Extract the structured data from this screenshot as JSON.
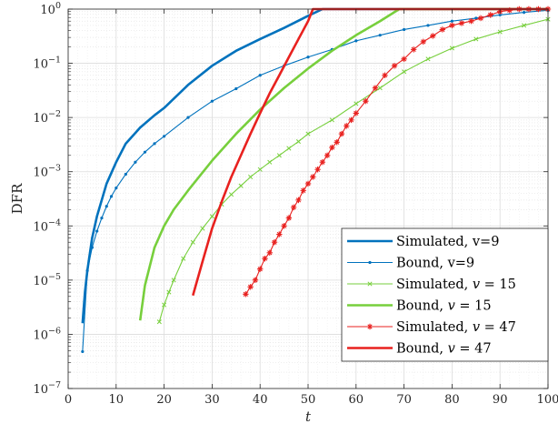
{
  "chart_data": {
    "type": "line",
    "title": "",
    "xlabel": "t",
    "ylabel": "DFR",
    "xlim": [
      0,
      100
    ],
    "ylim": [
      1e-07,
      1
    ],
    "yscale": "log",
    "x_ticks": [
      "0",
      "10",
      "20",
      "30",
      "40",
      "50",
      "60",
      "70",
      "80",
      "90",
      "100"
    ],
    "y_tick_exponents": [
      -7,
      -6,
      -5,
      -4,
      -3,
      -2,
      -1,
      0
    ],
    "grid": true,
    "minor_grid": true,
    "legend_position": "bottom-right",
    "series": [
      {
        "name": "Simulated, v=9",
        "color": "#0072BD",
        "style": "thick-line",
        "marker": "none",
        "x": [
          3,
          3.5,
          4,
          5,
          6,
          8,
          10,
          12,
          15,
          18,
          20,
          25,
          30,
          35,
          40,
          45,
          50,
          53,
          60,
          70,
          80,
          90,
          100
        ],
        "y": [
          1.6e-06,
          6e-06,
          1.5e-05,
          6e-05,
          0.00015,
          0.0006,
          0.0015,
          0.0033,
          0.0065,
          0.011,
          0.015,
          0.04,
          0.09,
          0.17,
          0.28,
          0.45,
          0.75,
          1,
          1,
          1,
          1,
          1,
          1
        ]
      },
      {
        "name": "Bound, v=9",
        "color": "#0072BD",
        "style": "thin-line",
        "marker": "dot",
        "x": [
          3,
          4,
          5,
          6,
          7,
          8,
          9,
          10,
          12,
          14,
          16,
          18,
          20,
          25,
          30,
          35,
          40,
          45,
          50,
          55,
          60,
          65,
          70,
          75,
          80,
          85,
          90,
          95,
          100
        ],
        "y": [
          4.8e-07,
          1.5e-05,
          4e-05,
          8e-05,
          0.00014,
          0.00023,
          0.00035,
          0.0005,
          0.0009,
          0.0015,
          0.0023,
          0.0033,
          0.0045,
          0.01,
          0.02,
          0.034,
          0.06,
          0.09,
          0.13,
          0.18,
          0.26,
          0.33,
          0.42,
          0.5,
          0.6,
          0.68,
          0.78,
          0.87,
          0.95
        ]
      },
      {
        "name": "Simulated, $v$ = 15",
        "color": "#77CF3C",
        "style": "thin-line",
        "marker": "x",
        "x": [
          19,
          20,
          21,
          22,
          24,
          26,
          28,
          30,
          32,
          34,
          36,
          38,
          40,
          42,
          44,
          46,
          48,
          50,
          55,
          60,
          65,
          70,
          75,
          80,
          85,
          90,
          95,
          100
        ],
        "y": [
          1.7e-06,
          3.5e-06,
          6e-06,
          1e-05,
          2.5e-05,
          5e-05,
          9e-05,
          0.00015,
          0.00025,
          0.00038,
          0.00055,
          0.0008,
          0.0011,
          0.0015,
          0.002,
          0.0027,
          0.0036,
          0.005,
          0.009,
          0.018,
          0.035,
          0.07,
          0.12,
          0.19,
          0.28,
          0.38,
          0.5,
          0.65
        ]
      },
      {
        "name": "Bound, $v$ = 15",
        "color": "#77CF3C",
        "style": "thick-line",
        "marker": "none",
        "x": [
          15,
          16,
          18,
          20,
          22,
          25,
          30,
          35,
          40,
          45,
          50,
          55,
          60,
          65,
          69,
          75,
          100
        ],
        "y": [
          1.8e-06,
          8e-06,
          4e-05,
          0.0001,
          0.0002,
          0.00045,
          0.0016,
          0.005,
          0.014,
          0.035,
          0.08,
          0.17,
          0.33,
          0.6,
          1,
          1,
          1
        ]
      },
      {
        "name": "Simulated, $v$ = 47",
        "color": "#E8211F",
        "style": "thin-line",
        "marker": "star",
        "x": [
          37,
          38,
          39,
          40,
          41,
          42,
          43,
          44,
          45,
          46,
          47,
          48,
          49,
          50,
          51,
          52,
          53,
          54,
          55,
          56,
          57,
          58,
          59,
          60,
          62,
          64,
          66,
          68,
          70,
          72,
          74,
          76,
          78,
          80,
          82,
          84,
          86,
          88,
          90,
          92,
          94,
          96,
          98,
          100
        ],
        "y": [
          5.5e-06,
          7.5e-06,
          1e-05,
          1.6e-05,
          2.5e-05,
          3.2e-05,
          5e-05,
          7e-05,
          0.0001,
          0.00014,
          0.00022,
          0.0003,
          0.00045,
          0.0006,
          0.0008,
          0.0011,
          0.0015,
          0.002,
          0.0028,
          0.0035,
          0.005,
          0.007,
          0.009,
          0.012,
          0.02,
          0.035,
          0.06,
          0.09,
          0.12,
          0.18,
          0.25,
          0.32,
          0.42,
          0.5,
          0.55,
          0.6,
          0.68,
          0.78,
          0.9,
          0.95,
          1,
          1,
          1,
          1
        ]
      },
      {
        "name": "Bound, $v$ = 47",
        "color": "#E8211F",
        "style": "thick-line",
        "marker": "none",
        "x": [
          26,
          28,
          30,
          32,
          34,
          36,
          38,
          40,
          42,
          44,
          46,
          48,
          50,
          51,
          60,
          70,
          80,
          90,
          100
        ],
        "y": [
          5.2e-06,
          2.2e-05,
          9e-05,
          0.00028,
          0.0008,
          0.002,
          0.005,
          0.012,
          0.028,
          0.06,
          0.13,
          0.28,
          0.6,
          1,
          1,
          1,
          1,
          1,
          1
        ]
      }
    ],
    "legend": [
      {
        "label": "Simulated, v=9"
      },
      {
        "label": "Bound, v=9"
      },
      {
        "label": "Simulated, $v$ = 15"
      },
      {
        "label": "Bound, $v$ = 15"
      },
      {
        "label": "Simulated, $v$ = 47"
      },
      {
        "label": "Bound, $v$ = 47"
      }
    ]
  }
}
